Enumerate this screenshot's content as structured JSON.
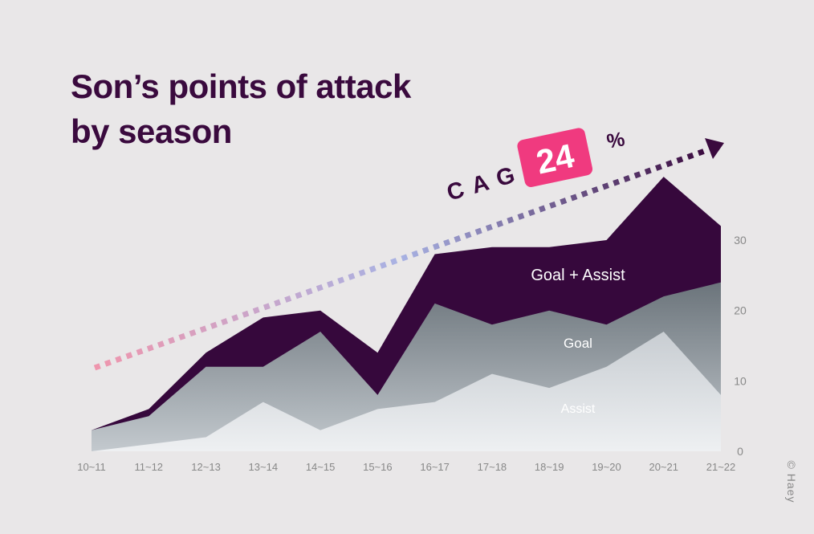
{
  "title_line1": "Son’s points of attack",
  "title_line2": "by season",
  "copyright": "© Haey",
  "colors": {
    "background": "#e9e7e8",
    "title": "#3a0a3e",
    "total_area": "#36083c",
    "goal_area_top": "#6b747b",
    "goal_area_bottom": "#c3c9ce",
    "assist_area_top": "#c8cdd2",
    "assist_area_bottom": "#eef0f2",
    "badge": "#f03a7f",
    "arrow_start": "#ef96ad",
    "arrow_mid": "#a8b2e3",
    "arrow_end": "#3a0a3e",
    "axis_text": "#888888"
  },
  "chart_data": {
    "type": "area",
    "title": "Son’s points of attack by season",
    "categories": [
      "10~11",
      "11~12",
      "12~13",
      "13~14",
      "14~15",
      "15~16",
      "16~17",
      "17~18",
      "18~19",
      "19~20",
      "20~21",
      "21~22"
    ],
    "series": [
      {
        "name": "Goal + Assist",
        "values": [
          3,
          6,
          14,
          19,
          20,
          14,
          28,
          29,
          29,
          30,
          39,
          32
        ]
      },
      {
        "name": "Goal",
        "values": [
          3,
          5,
          12,
          12,
          17,
          8,
          21,
          18,
          20,
          18,
          22,
          24
        ]
      },
      {
        "name": "Assist",
        "values": [
          0,
          1,
          2,
          7,
          3,
          6,
          7,
          11,
          9,
          12,
          17,
          8
        ]
      }
    ],
    "y_ticks": [
      0,
      10,
      20,
      30
    ],
    "ylim": [
      0,
      40
    ],
    "y_axis_side": "right",
    "grid": false,
    "annotation": {
      "label": "CAGR",
      "value": "24",
      "unit": "%"
    }
  }
}
